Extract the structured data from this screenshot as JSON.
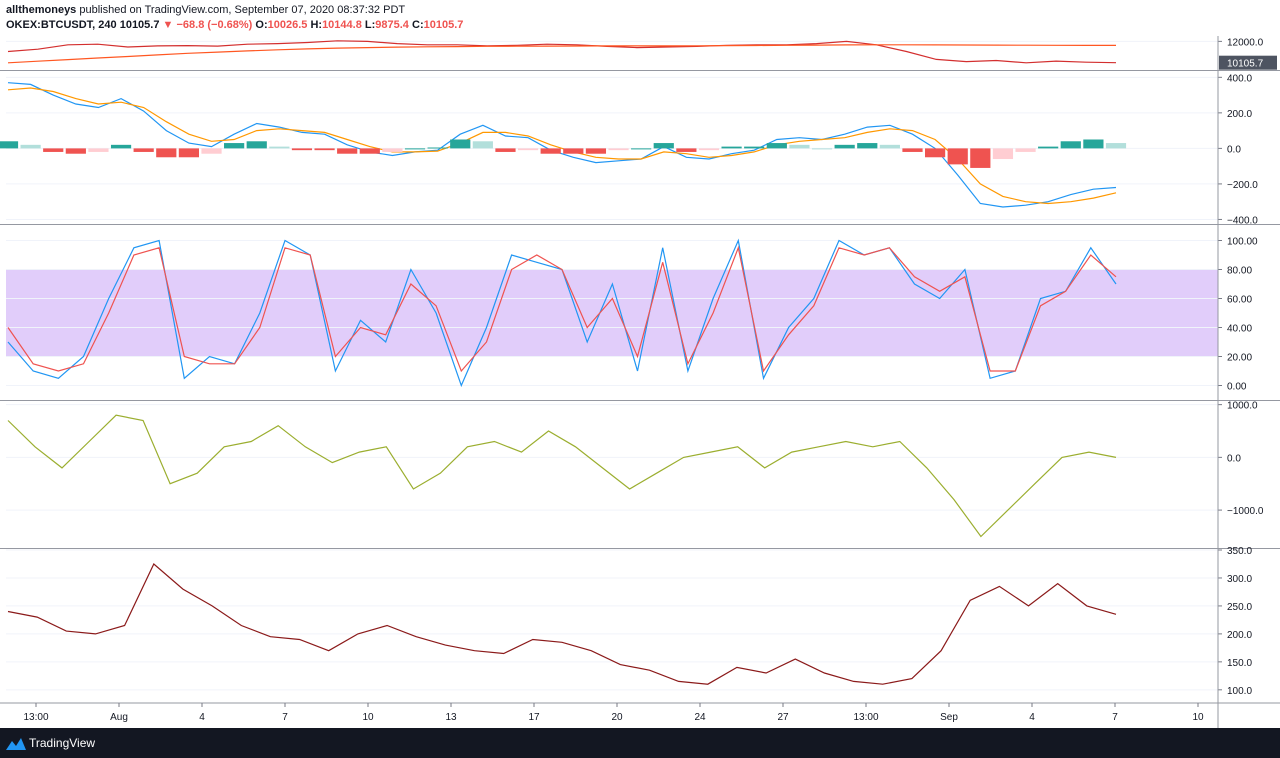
{
  "header": {
    "author": "allthemoneys",
    "published_text": "published on TradingView.com, September 07, 2020 08:37:32 PDT",
    "symbol": "OKEX:BTCUSDT, 240",
    "last": "10105.7",
    "change": "−68.8 (−0.68%)",
    "o_label": "O:",
    "o_value": "10026.5",
    "h_label": "H:",
    "h_value": "10144.8",
    "l_label": "L:",
    "l_value": "9875.4",
    "c_label": "C:",
    "c_value": "10105.7",
    "down_color": "#ef5350"
  },
  "footer": {
    "brand": "TradingView",
    "brand_icon": "tradingview-logo-icon"
  },
  "chart_data": {
    "type": "line",
    "x_tick_labels": [
      "13:00",
      "Aug",
      "4",
      "7",
      "10",
      "13",
      "17",
      "20",
      "24",
      "27",
      "13:00",
      "Sep",
      "4",
      "7",
      "10"
    ],
    "price_marker": "10105.7",
    "panes": [
      {
        "name": "price",
        "type": "line",
        "y_ticks": [
          "12000.0"
        ],
        "ylim": [
          9900,
          12300
        ],
        "series": [
          {
            "role": "price",
            "color": "#d32f2f",
            "values": [
              11100,
              11300,
              11700,
              11750,
              11500,
              11600,
              11620,
              11580,
              11750,
              11800,
              11900,
              12050,
              12000,
              11800,
              11700,
              11700,
              11600,
              11650,
              11750,
              11700,
              11550,
              11450,
              11500,
              11550,
              11650,
              11700,
              11700,
              11800,
              12000,
              11700,
              11100,
              10400,
              10200,
              10300,
              10100,
              10250,
              10150,
              10105
            ]
          },
          {
            "role": "ma-orange",
            "color": "#ff5722",
            "values": [
              10100,
              10240,
              10380,
              10520,
              10660,
              10800,
              10940,
              11050,
              11150,
              11250,
              11330,
              11400,
              11450,
              11490,
              11520,
              11540,
              11560,
              11570,
              11580,
              11590,
              11600,
              11600,
              11600,
              11610,
              11620,
              11630,
              11650,
              11670,
              11690,
              11700,
              11700,
              11690,
              11680,
              11670,
              11660,
              11650,
              11645,
              11640
            ]
          }
        ]
      },
      {
        "name": "macd",
        "type": "line+bar",
        "y_ticks": [
          "400.0",
          "200.0",
          "0.0",
          "−200.0",
          "−400.0"
        ],
        "ylim": [
          -420,
          430
        ],
        "series": [
          {
            "role": "macd",
            "color": "#2196f3",
            "values": [
              370,
              360,
              300,
              250,
              230,
              280,
              210,
              100,
              30,
              10,
              80,
              140,
              120,
              90,
              80,
              20,
              -20,
              -40,
              -20,
              -10,
              80,
              130,
              70,
              60,
              -10,
              -50,
              -80,
              -70,
              -60,
              10,
              -50,
              -60,
              -30,
              -10,
              50,
              60,
              50,
              80,
              120,
              130,
              80,
              0,
              -150,
              -310,
              -330,
              -320,
              -300,
              -260,
              -230,
              -220
            ]
          },
          {
            "role": "signal",
            "color": "#ff9800",
            "values": [
              330,
              340,
              320,
              280,
              250,
              260,
              230,
              150,
              80,
              40,
              50,
              100,
              110,
              100,
              90,
              50,
              10,
              -20,
              -20,
              -15,
              30,
              90,
              90,
              70,
              20,
              -20,
              -50,
              -60,
              -60,
              -20,
              -30,
              -50,
              -40,
              -20,
              20,
              40,
              50,
              60,
              90,
              110,
              100,
              50,
              -60,
              -200,
              -270,
              -300,
              -310,
              -300,
              -280,
              -250
            ]
          },
          {
            "role": "histogram",
            "values": [
              40,
              20,
              -20,
              -30,
              -20,
              20,
              -20,
              -50,
              -50,
              -30,
              30,
              40,
              10,
              -10,
              -10,
              -30,
              -30,
              -20,
              0,
              5,
              50,
              40,
              -20,
              -10,
              -30,
              -30,
              -30,
              -10,
              0,
              30,
              -20,
              -10,
              10,
              10,
              30,
              20,
              0,
              20,
              30,
              20,
              -20,
              -50,
              -90,
              -110,
              -60,
              -20,
              10,
              40,
              50,
              30
            ]
          }
        ]
      },
      {
        "name": "stochastic",
        "type": "line",
        "y_ticks": [
          "100.00",
          "80.00",
          "60.00",
          "40.00",
          "20.00",
          "0.00"
        ],
        "ylim": [
          -10,
          110
        ],
        "band": [
          20,
          80
        ],
        "series": [
          {
            "role": "%K",
            "color": "#2196f3",
            "values": [
              30,
              10,
              5,
              20,
              60,
              95,
              100,
              5,
              20,
              15,
              50,
              100,
              90,
              10,
              45,
              30,
              80,
              50,
              0,
              40,
              90,
              85,
              80,
              30,
              70,
              10,
              95,
              10,
              60,
              100,
              5,
              40,
              60,
              100,
              90,
              95,
              70,
              60,
              80,
              5,
              10,
              60,
              65,
              95,
              70
            ]
          },
          {
            "role": "%D",
            "color": "#ef5350",
            "values": [
              40,
              15,
              10,
              15,
              50,
              90,
              95,
              20,
              15,
              15,
              40,
              95,
              90,
              20,
              40,
              35,
              70,
              55,
              10,
              30,
              80,
              90,
              80,
              40,
              60,
              20,
              85,
              15,
              50,
              95,
              10,
              35,
              55,
              95,
              90,
              95,
              75,
              65,
              75,
              10,
              10,
              55,
              65,
              90,
              75
            ]
          }
        ]
      },
      {
        "name": "momentum",
        "type": "line",
        "y_ticks": [
          "1000.0",
          "0.0",
          "−1000.0"
        ],
        "ylim": [
          -1700,
          1050
        ],
        "series": [
          {
            "role": "momentum",
            "color": "#9bae2f",
            "values": [
              700,
              200,
              -200,
              300,
              800,
              700,
              -500,
              -300,
              200,
              300,
              600,
              200,
              -100,
              100,
              200,
              -600,
              -300,
              200,
              300,
              100,
              500,
              200,
              -200,
              -600,
              -300,
              0,
              100,
              200,
              -200,
              100,
              200,
              300,
              200,
              300,
              -200,
              -800,
              -1500,
              -1000,
              -500,
              0,
              100,
              0
            ]
          }
        ]
      },
      {
        "name": "volatility",
        "type": "line",
        "y_ticks": [
          "350.0",
          "300.0",
          "250.0",
          "200.0",
          "150.0",
          "100.0"
        ],
        "ylim": [
          80,
          350
        ],
        "series": [
          {
            "role": "value",
            "color": "#8b1a1a",
            "values": [
              240,
              230,
              205,
              200,
              215,
              325,
              280,
              250,
              215,
              195,
              190,
              170,
              200,
              215,
              195,
              180,
              170,
              165,
              190,
              185,
              170,
              145,
              135,
              115,
              110,
              140,
              130,
              155,
              130,
              115,
              110,
              120,
              170,
              260,
              285,
              250,
              290,
              250,
              235
            ]
          }
        ]
      }
    ]
  }
}
